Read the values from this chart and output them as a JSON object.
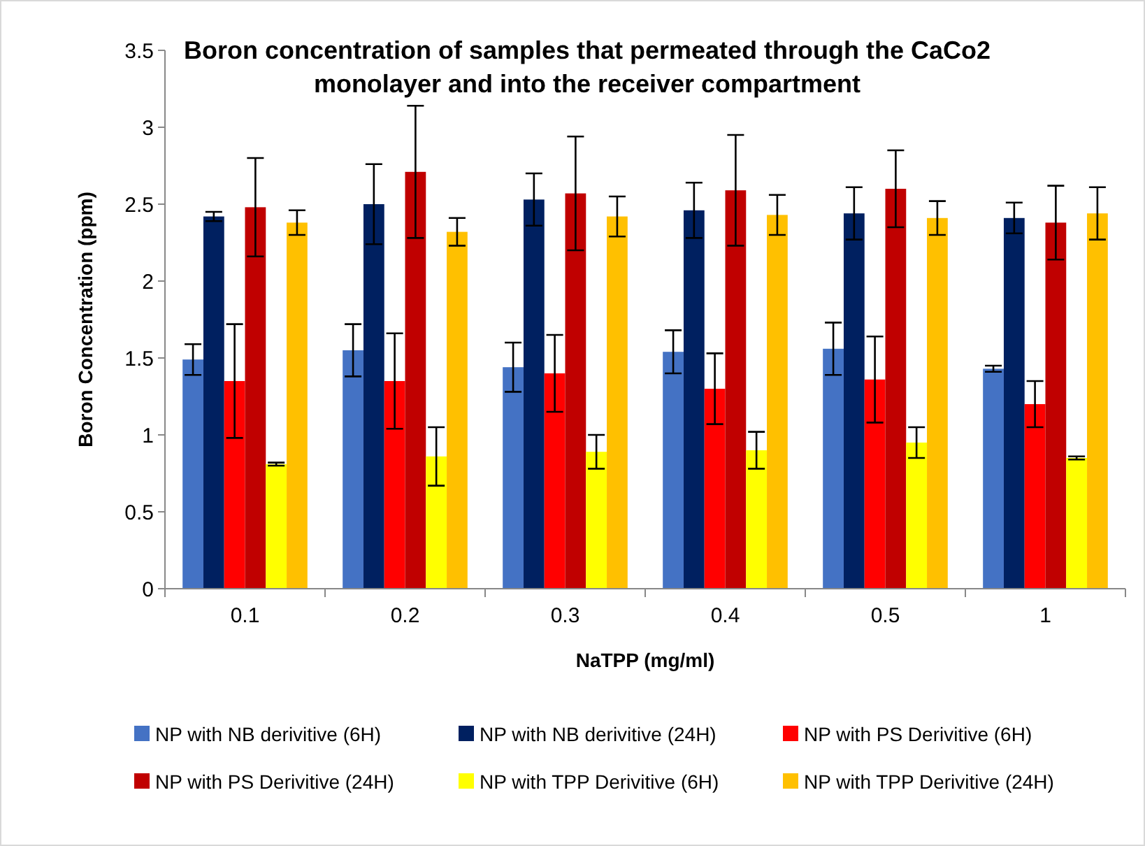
{
  "chart_data": {
    "type": "bar",
    "title": "Boron concentration of samples that permeated through the CaCo2 monolayer and into the receiver compartment",
    "xlabel": "NaTPP (mg/ml)",
    "ylabel": "Boron Concentration (ppm)",
    "categories": [
      "0.1",
      "0.2",
      "0.3",
      "0.4",
      "0.5",
      "1"
    ],
    "series": [
      {
        "name": "NP with NB derivitive (6H)",
        "color": "#4472c4",
        "values": [
          1.49,
          1.55,
          1.44,
          1.54,
          1.56,
          1.43
        ],
        "errors": [
          0.1,
          0.17,
          0.16,
          0.14,
          0.17,
          0.02
        ]
      },
      {
        "name": "NP with NB derivitive (24H)",
        "color": "#002060",
        "values": [
          2.42,
          2.5,
          2.53,
          2.46,
          2.44,
          2.41
        ],
        "errors": [
          0.03,
          0.26,
          0.17,
          0.18,
          0.17,
          0.1
        ]
      },
      {
        "name": "NP with PS Derivitive (6H)",
        "color": "#ff0000",
        "values": [
          1.35,
          1.35,
          1.4,
          1.3,
          1.36,
          1.2
        ],
        "errors": [
          0.37,
          0.31,
          0.25,
          0.23,
          0.28,
          0.15
        ]
      },
      {
        "name": "NP with PS Derivitive (24H)",
        "color": "#c00000",
        "values": [
          2.48,
          2.71,
          2.57,
          2.59,
          2.6,
          2.38
        ],
        "errors": [
          0.32,
          0.43,
          0.37,
          0.36,
          0.25,
          0.24
        ]
      },
      {
        "name": "NP with TPP Derivitive (6H)",
        "color": "#ffff00",
        "values": [
          0.81,
          0.86,
          0.89,
          0.9,
          0.95,
          0.85
        ],
        "errors": [
          0.01,
          0.19,
          0.11,
          0.12,
          0.1,
          0.01
        ]
      },
      {
        "name": "NP with TPP Derivitive (24H)",
        "color": "#ffc000",
        "values": [
          2.38,
          2.32,
          2.42,
          2.43,
          2.41,
          2.44
        ],
        "errors": [
          0.08,
          0.09,
          0.13,
          0.13,
          0.11,
          0.17
        ]
      }
    ],
    "ylim": [
      0,
      3.5
    ],
    "yticks": [
      {
        "value": 0,
        "label": "0"
      },
      {
        "value": 0.5,
        "label": "0.5"
      },
      {
        "value": 1,
        "label": "1"
      },
      {
        "value": 1.5,
        "label": "1.5"
      },
      {
        "value": 2,
        "label": "2"
      },
      {
        "value": 2.5,
        "label": "2.5"
      },
      {
        "value": 3,
        "label": "3"
      },
      {
        "value": 3.5,
        "label": "3.5"
      }
    ],
    "grid": false,
    "legend": "bottom"
  }
}
